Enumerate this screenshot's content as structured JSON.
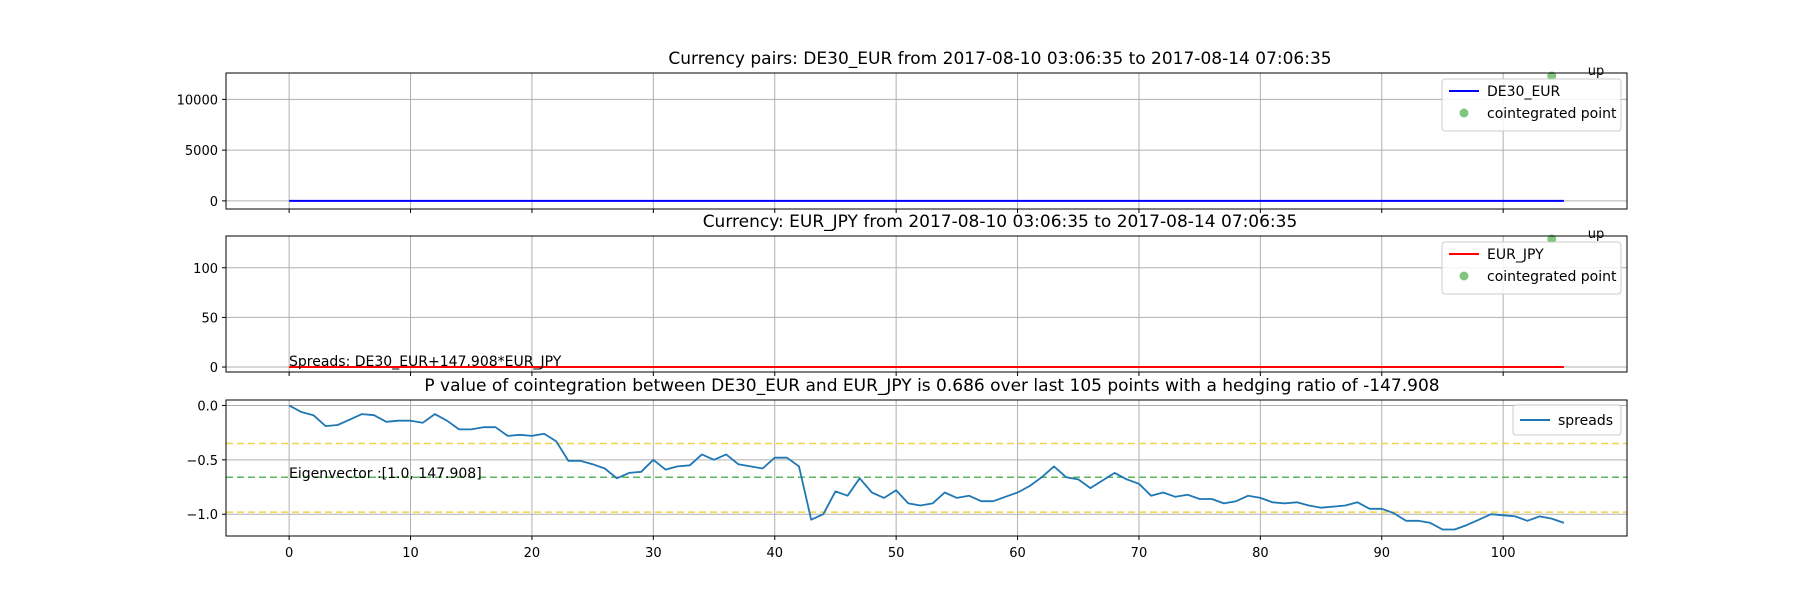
{
  "chart_data": [
    {
      "type": "line",
      "title": "Currency pairs: DE30_EUR from 2017-08-10 03:06:35 to 2017-08-14 07:06:35",
      "ylim": [
        -800,
        12600
      ],
      "yticks": [
        0,
        5000,
        10000
      ],
      "ytick_labels": [
        "0",
        "5000",
        "10000"
      ],
      "grid": true,
      "legend_position": "upper-right",
      "series": [
        {
          "name": "DE30_EUR",
          "color": "#0000ff",
          "constant_value": 0,
          "x_range": [
            0,
            105
          ]
        }
      ],
      "markers": [
        {
          "name": "cointegrated point",
          "color": "#2ca02c",
          "points": [
            {
              "x": 104,
              "y": 12300,
              "label": "up"
            }
          ]
        }
      ]
    },
    {
      "type": "line",
      "title": "Currency: EUR_JPY from 2017-08-10 03:06:35 to 2017-08-14 07:06:35",
      "ylim": [
        -5,
        132
      ],
      "yticks": [
        0,
        50,
        100
      ],
      "ytick_labels": [
        "0",
        "50",
        "100"
      ],
      "grid": true,
      "legend_position": "upper-right",
      "annotation": "Spreads: DE30_EUR+147.908*EUR_JPY",
      "series": [
        {
          "name": "EUR_JPY",
          "color": "#ff0000",
          "constant_value": 0,
          "x_range": [
            0,
            105
          ]
        }
      ],
      "markers": [
        {
          "name": "cointegrated point",
          "color": "#2ca02c",
          "points": [
            {
              "x": 104,
              "y": 129,
              "label": "up"
            }
          ]
        }
      ]
    },
    {
      "type": "line",
      "title": "P value of cointegration between DE30_EUR and EUR_JPY is 0.686 over last 105 points with a hedging ratio of -147.908",
      "ylim": [
        -1.2,
        0.05
      ],
      "yticks": [
        0.0,
        -0.5,
        -1.0
      ],
      "ytick_labels": [
        "0.0",
        "−0.5",
        "−1.0"
      ],
      "grid": true,
      "legend_position": "upper-right",
      "annotation": "Eigenvector :[1.0, 147.908]",
      "hlines": [
        {
          "y": -0.35,
          "color": "#f0d44a",
          "style": "dashed"
        },
        {
          "y": -0.66,
          "color": "#5cb85c",
          "style": "dashed"
        },
        {
          "y": -0.98,
          "color": "#f0d44a",
          "style": "dashed"
        }
      ],
      "series": [
        {
          "name": "spreads",
          "color": "#1f77b4",
          "x_start": 0,
          "values": [
            0.0,
            -0.06,
            -0.09,
            -0.19,
            -0.18,
            -0.13,
            -0.08,
            -0.09,
            -0.15,
            -0.14,
            -0.14,
            -0.16,
            -0.08,
            -0.14,
            -0.22,
            -0.22,
            -0.2,
            -0.2,
            -0.28,
            -0.27,
            -0.28,
            -0.26,
            -0.33,
            -0.51,
            -0.51,
            -0.54,
            -0.58,
            -0.67,
            -0.62,
            -0.61,
            -0.5,
            -0.59,
            -0.56,
            -0.55,
            -0.45,
            -0.5,
            -0.45,
            -0.54,
            -0.56,
            -0.58,
            -0.48,
            -0.48,
            -0.56,
            -1.05,
            -1.0,
            -0.79,
            -0.83,
            -0.67,
            -0.8,
            -0.85,
            -0.78,
            -0.9,
            -0.92,
            -0.9,
            -0.8,
            -0.85,
            -0.83,
            -0.88,
            -0.88,
            -0.84,
            -0.8,
            -0.74,
            -0.66,
            -0.56,
            -0.66,
            -0.68,
            -0.76,
            -0.69,
            -0.62,
            -0.68,
            -0.72,
            -0.83,
            -0.8,
            -0.84,
            -0.82,
            -0.86,
            -0.86,
            -0.9,
            -0.88,
            -0.83,
            -0.85,
            -0.89,
            -0.9,
            -0.89,
            -0.92,
            -0.94,
            -0.93,
            -0.92,
            -0.89,
            -0.95,
            -0.95,
            -0.99,
            -1.06,
            -1.06,
            -1.08,
            -1.14,
            -1.14,
            -1.1,
            -1.05,
            -1.0,
            -1.01,
            -1.02,
            -1.06,
            -1.02,
            -1.04,
            -1.08
          ]
        }
      ]
    }
  ],
  "xaxis": {
    "ticks": [
      0,
      10,
      20,
      30,
      40,
      50,
      60,
      70,
      80,
      90,
      100
    ],
    "tick_labels": [
      "0",
      "10",
      "20",
      "30",
      "40",
      "50",
      "60",
      "70",
      "80",
      "90",
      "100"
    ],
    "xlim": [
      -5.2,
      110.2
    ]
  }
}
